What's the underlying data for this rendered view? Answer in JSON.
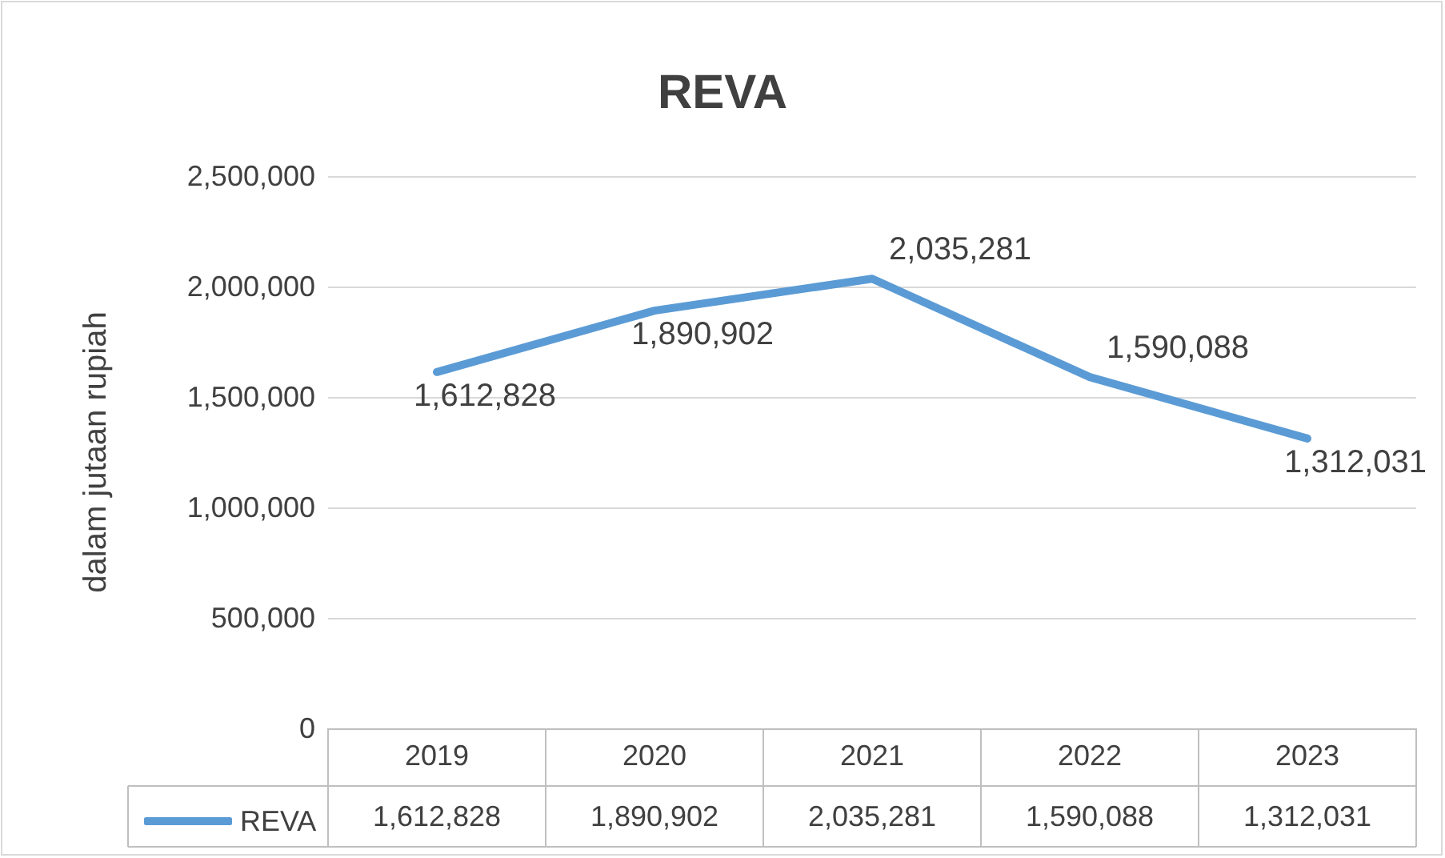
{
  "chart_data": {
    "type": "line",
    "title": "REVA",
    "ylabel": "dalam jutaan rupiah",
    "categories": [
      "2019",
      "2020",
      "2021",
      "2022",
      "2023"
    ],
    "series": [
      {
        "name": "REVA",
        "color": "#5b9bd5",
        "values": [
          1612828,
          1890902,
          2035281,
          1590088,
          1312031
        ],
        "value_labels": [
          "1,612,828",
          "1,890,902",
          "2,035,281",
          "1,590,088",
          "1,312,031"
        ]
      }
    ],
    "ylim": [
      0,
      2500000
    ],
    "yticks": [
      0,
      {
        "value": 500000,
        "label": "500,000"
      },
      {
        "value": 1000000,
        "label": "1,000,000"
      },
      {
        "value": 1500000,
        "label": "1,500,000"
      },
      {
        "value": 2000000,
        "label": "2,000,000"
      },
      {
        "value": 2500000,
        "label": "2,500,000"
      }
    ],
    "grid": "y",
    "legend": "bottom left",
    "marker": "none",
    "line_style": "solid"
  }
}
